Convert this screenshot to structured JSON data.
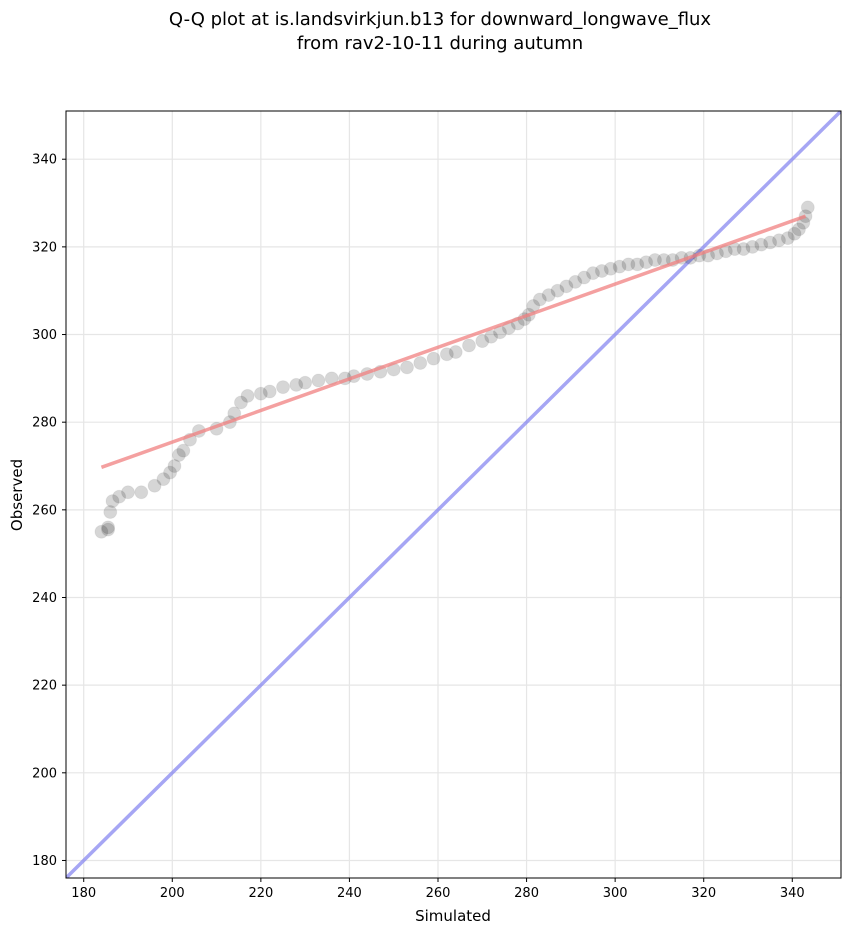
{
  "chart_data": {
    "type": "scatter",
    "title_lines": [
      "Q-Q plot at is.landsvirkjun.b13 for downward_longwave_flux",
      "from rav2-10-11 during autumn"
    ],
    "xlabel": "Simulated",
    "ylabel": "Observed",
    "xlim": [
      176,
      351
    ],
    "ylim": [
      176,
      351
    ],
    "xticks": [
      180,
      200,
      220,
      240,
      260,
      280,
      300,
      320,
      340
    ],
    "yticks": [
      180,
      200,
      220,
      240,
      260,
      280,
      300,
      320,
      340
    ],
    "grid": true,
    "series": [
      {
        "name": "quantiles",
        "color": "#000000",
        "points": [
          [
            184,
            255
          ],
          [
            185.5,
            255.5
          ],
          [
            185.5,
            256
          ],
          [
            186,
            259.5
          ],
          [
            186.5,
            262
          ],
          [
            188,
            263
          ],
          [
            190,
            264
          ],
          [
            193,
            264
          ],
          [
            196,
            265.5
          ],
          [
            198,
            267
          ],
          [
            199.5,
            268.5
          ],
          [
            200.5,
            270
          ],
          [
            201.5,
            272.5
          ],
          [
            202.5,
            273.5
          ],
          [
            204,
            276
          ],
          [
            206,
            278
          ],
          [
            210,
            278.5
          ],
          [
            213,
            280
          ],
          [
            214,
            282
          ],
          [
            215.5,
            284.5
          ],
          [
            217,
            286
          ],
          [
            220,
            286.5
          ],
          [
            222,
            287
          ],
          [
            225,
            288
          ],
          [
            228,
            288.5
          ],
          [
            230,
            289
          ],
          [
            233,
            289.5
          ],
          [
            236,
            290
          ],
          [
            239,
            290
          ],
          [
            241,
            290.5
          ],
          [
            244,
            291
          ],
          [
            247,
            291.5
          ],
          [
            250,
            292
          ],
          [
            253,
            292.5
          ],
          [
            256,
            293.5
          ],
          [
            259,
            294.5
          ],
          [
            262,
            295.5
          ],
          [
            264,
            296
          ],
          [
            267,
            297.5
          ],
          [
            270,
            298.5
          ],
          [
            272,
            299.5
          ],
          [
            274,
            300.5
          ],
          [
            276,
            301.5
          ],
          [
            278,
            302.5
          ],
          [
            279.5,
            303.5
          ],
          [
            280.5,
            304.5
          ],
          [
            281.5,
            306.5
          ],
          [
            283,
            308
          ],
          [
            285,
            309
          ],
          [
            287,
            310
          ],
          [
            289,
            311
          ],
          [
            291,
            312
          ],
          [
            293,
            313
          ],
          [
            295,
            314
          ],
          [
            297,
            314.5
          ],
          [
            299,
            315
          ],
          [
            301,
            315.5
          ],
          [
            303,
            316
          ],
          [
            305,
            316
          ],
          [
            307,
            316.5
          ],
          [
            309,
            317
          ],
          [
            311,
            317
          ],
          [
            313,
            317
          ],
          [
            315,
            317.5
          ],
          [
            317,
            317.5
          ],
          [
            319,
            318
          ],
          [
            321,
            318
          ],
          [
            323,
            318.5
          ],
          [
            325,
            319
          ],
          [
            327,
            319.5
          ],
          [
            329,
            319.5
          ],
          [
            331,
            320
          ],
          [
            333,
            320.5
          ],
          [
            335,
            321
          ],
          [
            337,
            321.5
          ],
          [
            339,
            322
          ],
          [
            340.5,
            323
          ],
          [
            341.5,
            324
          ],
          [
            342.5,
            325.5
          ],
          [
            343,
            327
          ],
          [
            343.5,
            329
          ]
        ]
      },
      {
        "name": "fit",
        "color": "#f08080",
        "line": [
          [
            184,
            269.7
          ],
          [
            343,
            327
          ]
        ]
      },
      {
        "name": "identity",
        "color": "#8080f0",
        "line": [
          [
            176,
            176
          ],
          [
            351,
            351
          ]
        ]
      }
    ]
  }
}
